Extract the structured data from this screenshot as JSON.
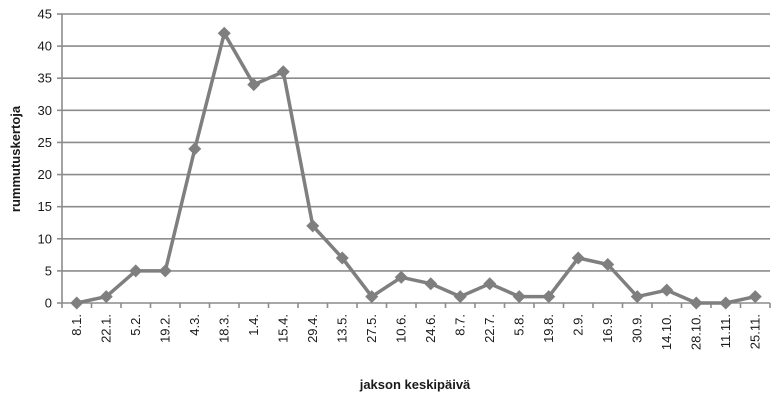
{
  "chart_data": {
    "type": "line",
    "xlabel": "jakson keskipäivä",
    "ylabel": "rummutuskertoja",
    "ylim": [
      0,
      45
    ],
    "yticks": [
      0,
      5,
      10,
      15,
      20,
      25,
      30,
      35,
      40,
      45
    ],
    "grid": true,
    "legend": "none",
    "categories": [
      "8.1.",
      "22.1.",
      "5.2.",
      "19.2.",
      "4.3.",
      "18.3.",
      "1.4.",
      "15.4.",
      "29.4.",
      "13.5.",
      "27.5.",
      "10.6.",
      "24.6.",
      "8.7.",
      "22.7.",
      "5.8.",
      "19.8.",
      "2.9.",
      "16.9.",
      "30.9.",
      "14.10.",
      "28.10.",
      "11.11.",
      "25.11."
    ],
    "series": [
      {
        "values": [
          0,
          1,
          5,
          5,
          24,
          42,
          34,
          36,
          12,
          7,
          1,
          4,
          3,
          1,
          3,
          1,
          1,
          7,
          6,
          1,
          2,
          0,
          0,
          1
        ],
        "color": "#7f7f7f"
      }
    ]
  }
}
